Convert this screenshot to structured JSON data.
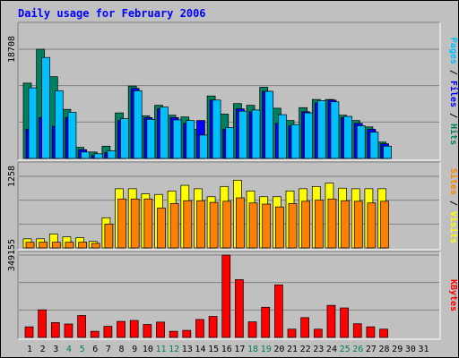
{
  "colors": {
    "background": "#C0C0C0",
    "panel": "#C0C0C0",
    "title": "#0000FF",
    "hits": "#00805C",
    "files": "#0000FF",
    "pages": "#00C0FF",
    "visits": "#FFFF00",
    "sites": "#FF8000",
    "kbytes": "#FF0000",
    "weekend_day": "#00805C",
    "weekday_day": "#000000",
    "grid": "#808080",
    "label_sep": "#000000"
  },
  "chart_data": {
    "type": "bar",
    "title": "Daily usage for February 2006",
    "categories": [
      "1",
      "2",
      "3",
      "4",
      "5",
      "6",
      "7",
      "8",
      "9",
      "10",
      "11",
      "12",
      "13",
      "14",
      "15",
      "16",
      "17",
      "18",
      "19",
      "20",
      "21",
      "22",
      "23",
      "24",
      "25",
      "26",
      "27",
      "28",
      "29",
      "30",
      "31"
    ],
    "weekend_days": [
      4,
      5,
      11,
      12,
      18,
      19,
      25,
      26
    ],
    "panels": [
      {
        "name": "hits-files-pages",
        "ymax": 18708,
        "ytick_label": "18708",
        "labels": [
          "Pages",
          "Files",
          "Hits"
        ],
        "label_colors": [
          "#00C0FF",
          "#0000FF",
          "#00805C"
        ],
        "series": [
          {
            "key": "hits",
            "values": [
              12900,
              18708,
              14000,
              8400,
              1900,
              1100,
              2100,
              7800,
              12400,
              7300,
              9100,
              7400,
              7100,
              5000,
              10700,
              7600,
              9400,
              9100,
              12200,
              8600,
              6500,
              8700,
              10100,
              10100,
              7400,
              6500,
              5400,
              2800,
              0,
              0,
              0
            ]
          },
          {
            "key": "files",
            "values": [
              5000,
              7000,
              5500,
              7000,
              1500,
              500,
              1000,
              6500,
              12000,
              7000,
              8500,
              7000,
              6000,
              6500,
              10000,
              5000,
              8500,
              8000,
              11500,
              6000,
              5600,
              8000,
              9500,
              10000,
              7000,
              6000,
              5000,
              2500,
              0,
              0,
              0
            ]
          },
          {
            "key": "pages",
            "values": [
              12100,
              17300,
              11600,
              7900,
              1100,
              800,
              1300,
              6800,
              11600,
              6700,
              8800,
              6600,
              6500,
              4000,
              10000,
              5300,
              8100,
              8300,
              11500,
              7500,
              5800,
              7800,
              9900,
              9700,
              7200,
              5600,
              4500,
              2100,
              0,
              0,
              0
            ]
          }
        ]
      },
      {
        "name": "visits-sites",
        "ymax": 1258,
        "ytick_label": "1258",
        "labels": [
          "Sites",
          "Visits"
        ],
        "label_colors": [
          "#FF8000",
          "#FFFF00"
        ],
        "series": [
          {
            "key": "visits",
            "values": [
              160,
              160,
              245,
              195,
              180,
              115,
              530,
              1040,
              1040,
              950,
              940,
              1000,
              1100,
              1040,
              900,
              1080,
              1190,
              1000,
              900,
              900,
              1000,
              1040,
              1080,
              1140,
              1050,
              1040,
              1040,
              1040,
              0,
              0,
              0
            ]
          },
          {
            "key": "sites",
            "values": [
              100,
              100,
              100,
              100,
              100,
              80,
              420,
              860,
              860,
              860,
              700,
              780,
              830,
              830,
              800,
              820,
              880,
              790,
              770,
              720,
              780,
              820,
              840,
              860,
              830,
              820,
              790,
              820,
              0,
              0,
              0
            ]
          }
        ]
      },
      {
        "name": "kbytes",
        "ymax": 349155,
        "ytick_label": "349155",
        "labels": [
          "KBytes"
        ],
        "label_colors": [
          "#FF0000"
        ],
        "series": [
          {
            "key": "kbytes",
            "values": [
              45000,
              117000,
              63000,
              57000,
              93000,
              26000,
              47000,
              68000,
              72000,
              55000,
              65000,
              26000,
              30000,
              76000,
              89000,
              349155,
              245000,
              66000,
              128000,
              223000,
              35000,
              84000,
              35000,
              136000,
              125000,
              58000,
              45000,
              35000,
              0,
              0,
              0
            ]
          }
        ]
      }
    ]
  }
}
